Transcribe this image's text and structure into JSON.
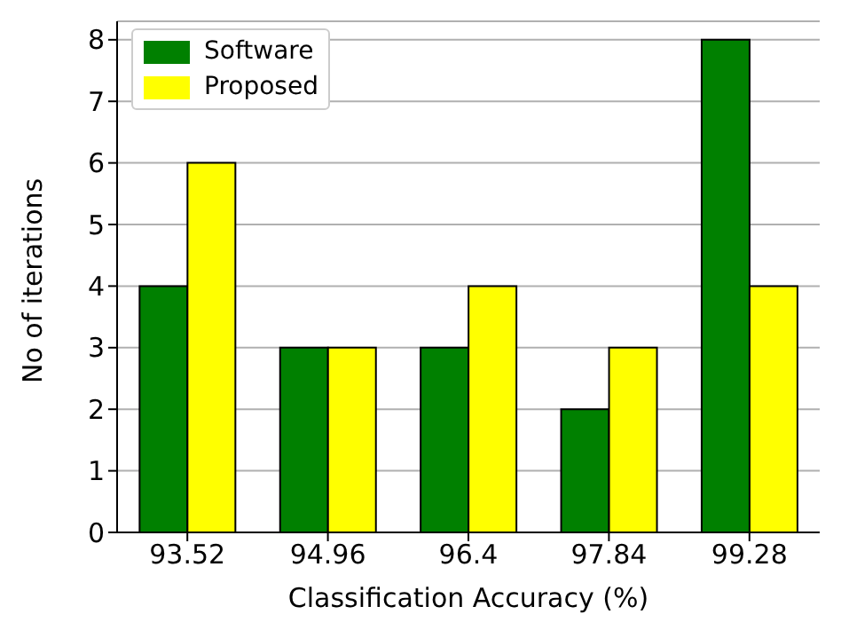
{
  "chart_data": {
    "type": "bar",
    "xlabel": "Classification Accuracy (%)",
    "ylabel": "No of iterations",
    "categories": [
      "93.52",
      "94.96",
      "96.4",
      "97.84",
      "99.28"
    ],
    "series": [
      {
        "name": "Software",
        "color": "#008000",
        "values": [
          4,
          3,
          3,
          2,
          8
        ]
      },
      {
        "name": "Proposed",
        "color": "#ffff00",
        "values": [
          6,
          3,
          4,
          3,
          4
        ]
      }
    ],
    "ylim": [
      0,
      8.3
    ],
    "yticks": [
      0,
      1,
      2,
      3,
      4,
      5,
      6,
      7,
      8
    ],
    "grid": "y",
    "legend": "top left"
  }
}
